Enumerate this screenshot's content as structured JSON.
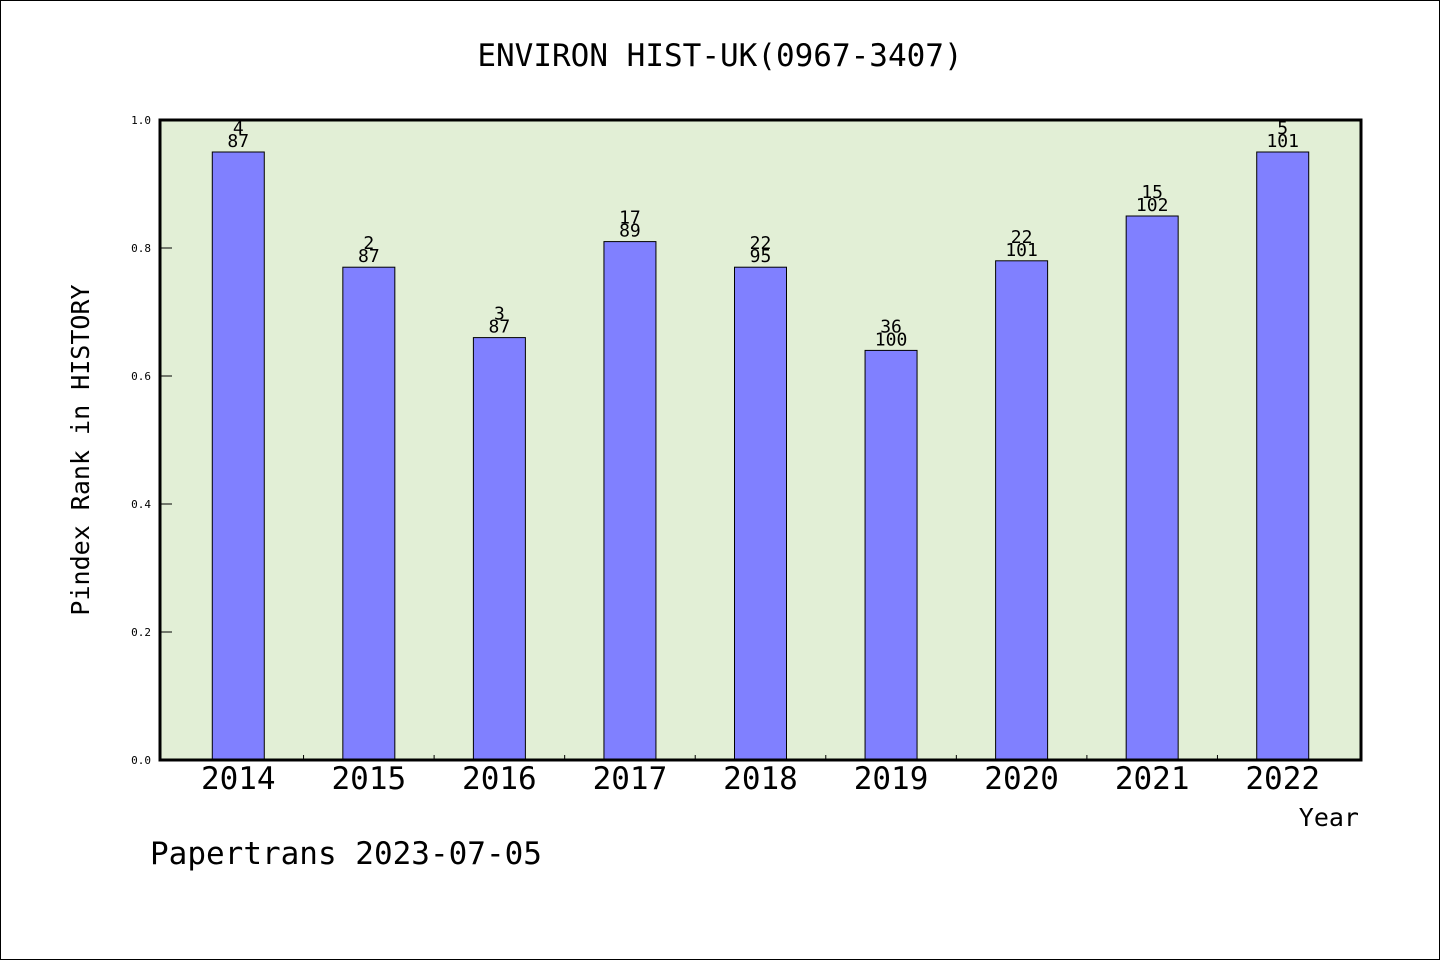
{
  "chart_data": {
    "type": "bar",
    "title": "ENVIRON HIST-UK(0967-3407)",
    "xlabel": "Year",
    "ylabel": "Pindex Rank in HISTORY",
    "ylim": [
      0,
      1.0
    ],
    "yticks": [
      "0.0",
      "0.2",
      "0.4",
      "0.6",
      "0.8",
      "1.0"
    ],
    "categories": [
      "2014",
      "2015",
      "2016",
      "2017",
      "2018",
      "2019",
      "2020",
      "2021",
      "2022"
    ],
    "values": [
      0.95,
      0.77,
      0.66,
      0.81,
      0.77,
      0.64,
      0.78,
      0.85,
      0.95
    ],
    "rank_labels": [
      "4",
      "2",
      "3",
      "17",
      "22",
      "36",
      "22",
      "15",
      "5"
    ],
    "total_labels": [
      "87",
      "87",
      "87",
      "89",
      "95",
      "100",
      "101",
      "102",
      "101"
    ],
    "grid": false,
    "plot_background": "#e2efd6",
    "bar_color": "#8080ff"
  },
  "footer": "Papertrans 2023-07-05"
}
